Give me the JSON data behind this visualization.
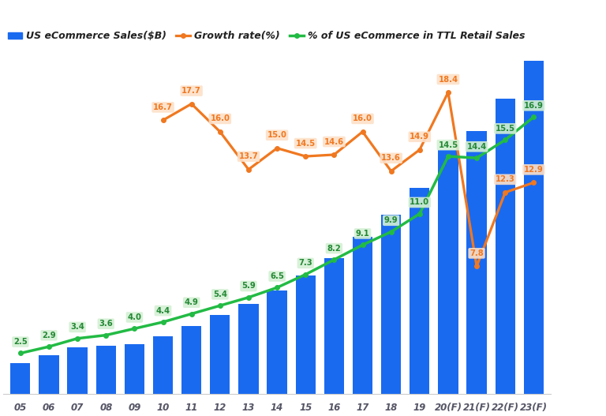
{
  "years": [
    "05",
    "06",
    "07",
    "08",
    "09",
    "10",
    "11",
    "12",
    "13",
    "14",
    "15",
    "16",
    "17",
    "18",
    "19",
    "20(F)",
    "21(F)",
    "22(F)",
    "23(F)"
  ],
  "sales": [
    91,
    113,
    136,
    142,
    145,
    169,
    199,
    231,
    263,
    302,
    346,
    396,
    459,
    522,
    600,
    710,
    765,
    859,
    970
  ],
  "growth_rate": [
    null,
    null,
    null,
    null,
    null,
    16.7,
    17.7,
    16.0,
    13.7,
    15.0,
    14.5,
    14.6,
    16.0,
    13.6,
    14.9,
    18.4,
    7.8,
    12.3,
    12.9
  ],
  "ecom_pct": [
    2.5,
    2.9,
    3.4,
    3.6,
    4.0,
    4.4,
    4.9,
    5.4,
    5.9,
    6.5,
    7.3,
    8.2,
    9.1,
    9.9,
    11.0,
    14.5,
    14.4,
    15.5,
    16.9
  ],
  "bar_color": "#1a6af0",
  "growth_color": "#f07820",
  "pct_color": "#22bb44",
  "bg_color": "#ffffff",
  "legend_labels": [
    "US eCommerce Sales($B)",
    "Growth rate(%)",
    "% of US eCommerce in TTL Retail Sales"
  ],
  "growth_label_bg": "#fde0c8",
  "pct_label_bg": "#d4f0d4",
  "sales_label_color": "#1a6af0",
  "tick_color": "#555566"
}
